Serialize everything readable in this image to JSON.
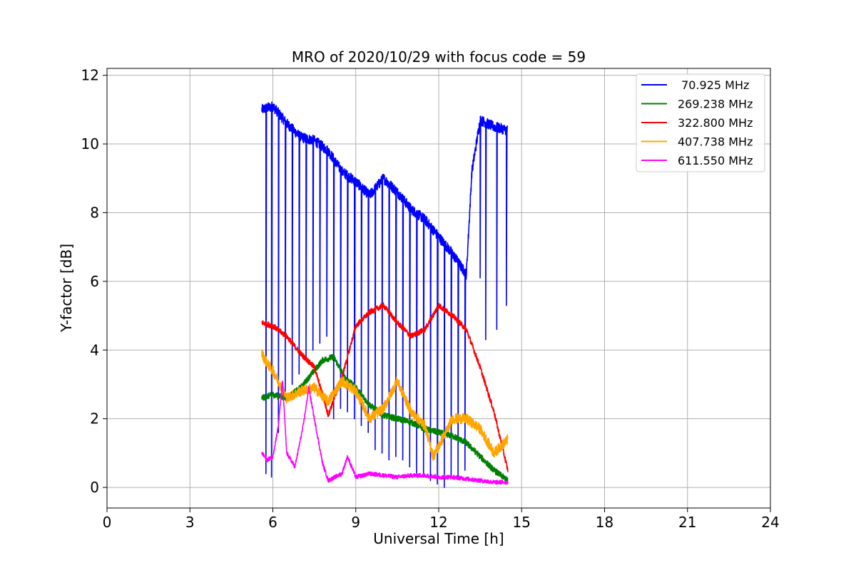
{
  "chart_data": {
    "type": "line",
    "title": "MRO of 2020/10/29 with focus code = 59",
    "xlabel": "Universal Time [h]",
    "ylabel": "Y-factor [dB]",
    "xlim": [
      0,
      24
    ],
    "ylim": [
      -0.6,
      12.2
    ],
    "xticks": [
      0,
      3,
      6,
      9,
      12,
      15,
      18,
      21,
      24
    ],
    "xtick_labels": [
      "0",
      "3",
      "6",
      "9",
      "12",
      "15",
      "18",
      "21",
      "24"
    ],
    "yticks": [
      0,
      2,
      4,
      6,
      8,
      10,
      12
    ],
    "ytick_labels": [
      "0",
      "2",
      "4",
      "6",
      "8",
      "10",
      "12"
    ],
    "grid": true,
    "legend_position": "top-right",
    "series": [
      {
        "name": " 70.925 MHz",
        "color": "#0000ff",
        "x": [
          5.6,
          6.0,
          6.5,
          7.0,
          7.5,
          8.0,
          8.5,
          9.0,
          9.5,
          10.0,
          10.5,
          11.0,
          11.5,
          12.0,
          12.5,
          13.0,
          13.2,
          13.5,
          14.0,
          14.5
        ],
        "y": [
          11.0,
          11.1,
          10.6,
          10.2,
          10.1,
          9.8,
          9.2,
          8.9,
          8.5,
          9.0,
          8.6,
          8.1,
          7.8,
          7.3,
          6.8,
          6.2,
          9.2,
          10.7,
          10.5,
          10.4
        ],
        "dips": [
          [
            5.75,
            0.4
          ],
          [
            5.95,
            0.3
          ],
          [
            6.2,
            1.6
          ],
          [
            6.45,
            2.8
          ],
          [
            6.7,
            3.0
          ],
          [
            6.95,
            3.3
          ],
          [
            7.2,
            3.8
          ],
          [
            7.45,
            4.0
          ],
          [
            7.7,
            4.2
          ],
          [
            7.95,
            4.4
          ],
          [
            8.2,
            2.0
          ],
          [
            8.45,
            2.3
          ],
          [
            8.7,
            2.2
          ],
          [
            8.95,
            2.0
          ],
          [
            9.2,
            1.8
          ],
          [
            9.45,
            1.6
          ],
          [
            9.7,
            1.1
          ],
          [
            9.95,
            1.0
          ],
          [
            10.2,
            0.8
          ],
          [
            10.45,
            0.9
          ],
          [
            10.7,
            0.8
          ],
          [
            10.95,
            0.6
          ],
          [
            11.2,
            0.4
          ],
          [
            11.45,
            0.3
          ],
          [
            11.7,
            0.2
          ],
          [
            11.95,
            0.1
          ],
          [
            12.2,
            0.0
          ],
          [
            12.45,
            0.3
          ],
          [
            12.7,
            0.3
          ],
          [
            12.95,
            0.5
          ],
          [
            13.5,
            6.1
          ],
          [
            13.7,
            4.3
          ],
          [
            14.1,
            4.6
          ],
          [
            14.45,
            5.3
          ]
        ]
      },
      {
        "name": "269.238 MHz",
        "color": "#008000",
        "x": [
          5.6,
          6.0,
          6.5,
          7.0,
          7.5,
          7.8,
          8.2,
          8.6,
          9.0,
          9.5,
          10.0,
          10.5,
          11.0,
          11.5,
          12.0,
          12.5,
          13.0,
          13.5,
          14.0,
          14.5
        ],
        "y": [
          2.6,
          2.7,
          2.6,
          2.9,
          3.4,
          3.7,
          3.8,
          3.2,
          2.9,
          2.4,
          2.1,
          2.0,
          1.9,
          1.7,
          1.6,
          1.5,
          1.3,
          0.9,
          0.5,
          0.2
        ]
      },
      {
        "name": "322.800 MHz",
        "color": "#ff0000",
        "x": [
          5.6,
          6.0,
          6.5,
          7.0,
          7.5,
          7.8,
          8.0,
          8.5,
          9.0,
          9.5,
          10.0,
          10.5,
          11.0,
          11.5,
          12.0,
          12.5,
          13.0,
          13.5,
          14.0,
          14.5
        ],
        "y": [
          4.8,
          4.7,
          4.4,
          3.9,
          3.5,
          2.7,
          2.1,
          3.2,
          4.7,
          5.1,
          5.3,
          4.8,
          4.4,
          4.6,
          5.3,
          5.0,
          4.6,
          3.5,
          2.2,
          0.5
        ]
      },
      {
        "name": "407.738 MHz",
        "color": "#ffa500",
        "x": [
          5.6,
          5.8,
          6.0,
          6.5,
          7.0,
          7.5,
          8.0,
          8.5,
          9.0,
          9.5,
          10.0,
          10.5,
          11.0,
          11.5,
          11.8,
          12.0,
          12.5,
          13.0,
          13.5,
          14.0,
          14.5
        ],
        "y": [
          3.9,
          3.6,
          3.4,
          2.6,
          2.8,
          2.9,
          2.5,
          3.1,
          2.8,
          2.0,
          2.3,
          3.1,
          2.2,
          1.8,
          0.9,
          1.2,
          2.0,
          2.0,
          1.7,
          1.0,
          1.4
        ]
      },
      {
        "name": "611.550 MHz",
        "color": "#ff00ff",
        "x": [
          5.6,
          5.8,
          6.0,
          6.2,
          6.35,
          6.5,
          6.8,
          7.1,
          7.3,
          7.5,
          7.8,
          8.0,
          8.5,
          8.7,
          9.0,
          9.5,
          10.0,
          10.5,
          11.0,
          11.5,
          12.0,
          12.5,
          13.0,
          13.5,
          14.0,
          14.5
        ],
        "y": [
          1.0,
          0.8,
          0.9,
          1.8,
          3.1,
          1.0,
          0.6,
          1.8,
          2.9,
          2.0,
          0.7,
          0.2,
          0.4,
          0.9,
          0.3,
          0.4,
          0.35,
          0.3,
          0.35,
          0.35,
          0.3,
          0.3,
          0.25,
          0.2,
          0.15,
          0.15
        ]
      }
    ]
  }
}
